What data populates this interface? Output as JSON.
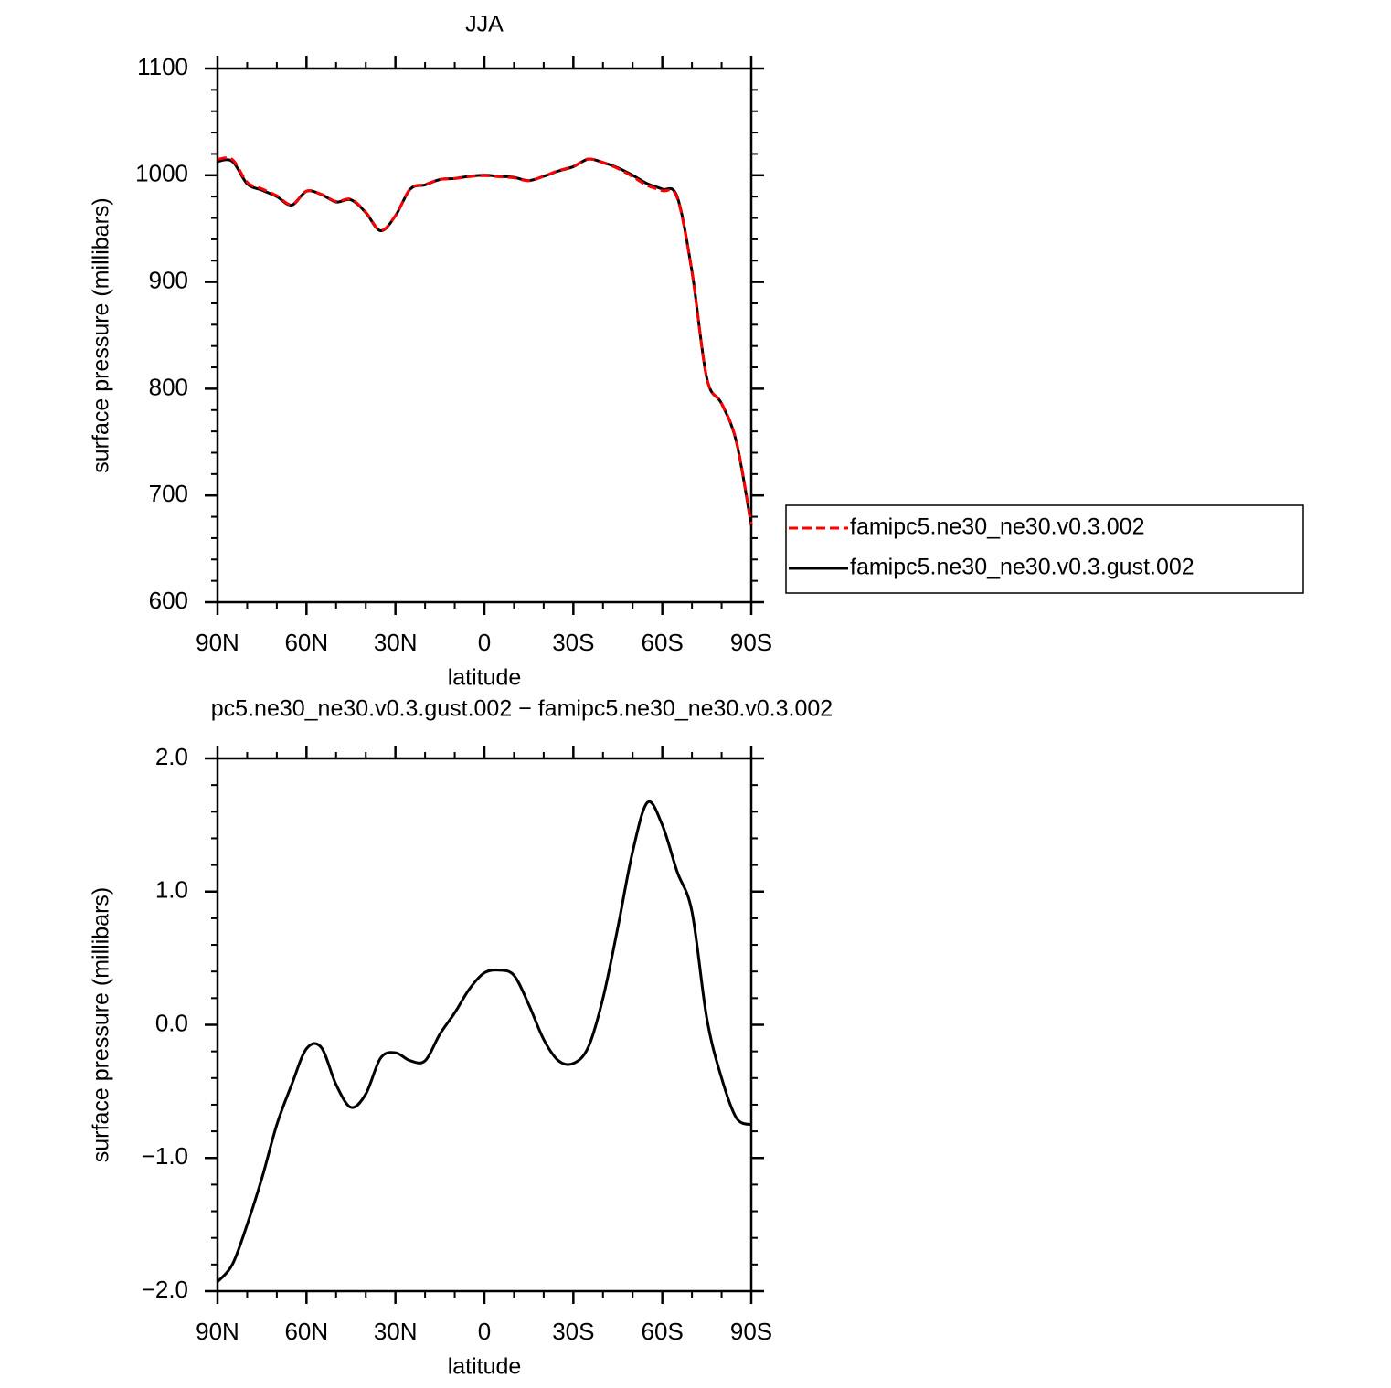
{
  "chart_data": [
    {
      "type": "line",
      "title": "JJA",
      "xlabel": "latitude",
      "ylabel": "surface pressure (millibars)",
      "x": [
        90,
        85,
        80,
        75,
        70,
        65,
        60,
        55,
        50,
        45,
        40,
        35,
        30,
        25,
        20,
        15,
        10,
        5,
        0,
        -5,
        -10,
        -15,
        -20,
        -25,
        -30,
        -35,
        -40,
        -45,
        -50,
        -55,
        -60,
        -65,
        -70,
        -75,
        -80,
        -85,
        -90
      ],
      "xlim": [
        90,
        -90
      ],
      "xticks": [
        {
          "value": 90,
          "label": "90N"
        },
        {
          "value": 60,
          "label": "60N"
        },
        {
          "value": 30,
          "label": "30N"
        },
        0,
        {
          "value": -30,
          "label": "30S"
        },
        {
          "value": -60,
          "label": "60S"
        },
        {
          "value": -90,
          "label": "90S"
        }
      ],
      "ylim": [
        600,
        1100
      ],
      "yticks": [
        600,
        700,
        800,
        900,
        1000,
        1100
      ],
      "legend": "right",
      "series": [
        {
          "name": "famipc5.ne30_ne30.v0.3.002",
          "color": "#ff0000",
          "linestyle": "dashed",
          "values": [
            1014.9,
            1014.8,
            993.5,
            987.2,
            980.8,
            972.5,
            985.2,
            982.2,
            975.5,
            977.6,
            965.5,
            948.3,
            962.2,
            987.3,
            991.3,
            996.1,
            996.9,
            998.7,
            999.6,
            998.6,
            997.6,
            994.9,
            999.1,
            1004.3,
            1008.3,
            1015.2,
            1011.8,
            1006.3,
            998.7,
            990.3,
            985.5,
            978.9,
            909.2,
            810,
            786.4,
            750.7,
            672.8
          ]
        },
        {
          "name": "famipc5.ne30_ne30.v0.3.gust.002",
          "color": "#000000",
          "linestyle": "solid",
          "values": [
            1013,
            1013,
            992,
            986,
            980,
            972,
            985,
            982,
            975,
            977,
            965,
            948,
            962,
            987,
            991,
            996,
            997,
            999,
            1000,
            999,
            998,
            995,
            999,
            1004,
            1008,
            1015,
            1012,
            1007,
            1000,
            992,
            987,
            980,
            910,
            810,
            786,
            750,
            672
          ]
        }
      ]
    },
    {
      "type": "line",
      "title": "pc5.ne30_ne30.v0.3.gust.002 − famipc5.ne30_ne30.v0.3.002",
      "xlabel": "latitude",
      "ylabel": "surface pressure (millibars)",
      "x": [
        90,
        85,
        80,
        75,
        70,
        65,
        60,
        55,
        50,
        45,
        40,
        35,
        30,
        25,
        20,
        15,
        10,
        5,
        0,
        -5,
        -10,
        -15,
        -20,
        -25,
        -30,
        -35,
        -40,
        -45,
        -50,
        -55,
        -60,
        -65,
        -70,
        -75,
        -80,
        -85,
        -90
      ],
      "xlim": [
        90,
        -90
      ],
      "xticks": [
        {
          "value": 90,
          "label": "90N"
        },
        {
          "value": 60,
          "label": "60N"
        },
        {
          "value": 30,
          "label": "30N"
        },
        0,
        {
          "value": -30,
          "label": "30S"
        },
        {
          "value": -60,
          "label": "60S"
        },
        {
          "value": -90,
          "label": "90S"
        }
      ],
      "ylim": [
        -2,
        2
      ],
      "yticks": [
        {
          "value": -2,
          "label": "−2.0"
        },
        {
          "value": -1,
          "label": "−1.0"
        },
        {
          "value": 0,
          "label": "0.0"
        },
        {
          "value": 1,
          "label": "1.0"
        },
        {
          "value": 2,
          "label": "2.0"
        }
      ],
      "series": [
        {
          "color": "#000000",
          "linestyle": "solid",
          "values": [
            -1.93,
            -1.8,
            -1.5,
            -1.15,
            -0.75,
            -0.45,
            -0.18,
            -0.17,
            -0.45,
            -0.62,
            -0.52,
            -0.25,
            -0.21,
            -0.27,
            -0.27,
            -0.07,
            0.09,
            0.27,
            0.39,
            0.41,
            0.37,
            0.15,
            -0.11,
            -0.27,
            -0.29,
            -0.17,
            0.2,
            0.73,
            1.3,
            1.67,
            1.5,
            1.15,
            0.85,
            0.05,
            -0.4,
            -0.7,
            -0.75
          ]
        }
      ]
    }
  ]
}
